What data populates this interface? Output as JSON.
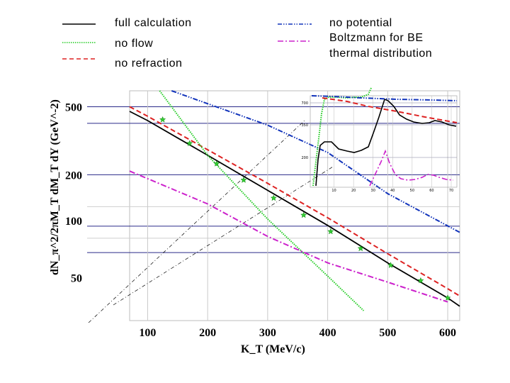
{
  "chart_data": {
    "type": "line",
    "xlabel": "K_T (MeV/c)",
    "ylabel": "dN_π^2/2πM_T dM_T dY (GeV^-2)",
    "x_ticks": [
      "100",
      "200",
      "300",
      "400",
      "500",
      "600"
    ],
    "y_ticks": [
      "500",
      "200",
      "100",
      "50"
    ],
    "xlim": [
      70,
      620
    ],
    "ylim": [
      28,
      620
    ],
    "y_scale": "log",
    "legend": {
      "placement": "top",
      "entries": [
        {
          "label": "full calculation",
          "color": "#000000",
          "dash": "solid"
        },
        {
          "label": "no flow",
          "color": "#22cc22",
          "dash": "dotted"
        },
        {
          "label": "no refraction",
          "color": "#dd2222",
          "dash": "dashed"
        },
        {
          "label": "no potential",
          "color": "#1133bb",
          "dash": "dashdotdot"
        },
        {
          "label": "Boltzmann for BE",
          "color": "#cc22cc",
          "dash": "dashdot"
        },
        {
          "label": "thermal distribution",
          "color": "",
          "dash": ""
        }
      ]
    },
    "series": [
      {
        "color": "#000000",
        "dash": "solid",
        "x": [
          70,
          100,
          200,
          300,
          400,
          500,
          600,
          620
        ],
        "y": [
          470,
          415,
          260,
          162,
          101,
          61,
          38,
          34
        ]
      },
      {
        "color": "#dd2222",
        "dash": "dashed",
        "x": [
          70,
          100,
          200,
          300,
          400,
          500,
          600,
          620
        ],
        "y": [
          500,
          440,
          280,
          178,
          112,
          69,
          43,
          39
        ]
      },
      {
        "color": "#22cc22",
        "dash": "dotted",
        "x": [
          120,
          200,
          300,
          400,
          460
        ],
        "y": [
          620,
          260,
          110,
          51,
          32
        ]
      },
      {
        "color": "#1133bb",
        "dash": "dashdotdot",
        "x": [
          140,
          300,
          400,
          500,
          620
        ],
        "y": [
          620,
          390,
          270,
          155,
          92
        ]
      },
      {
        "color": "#cc22cc",
        "dash": "dashdot",
        "x": [
          70,
          200,
          300,
          400,
          500,
          600
        ],
        "y": [
          210,
          135,
          87,
          61,
          47,
          36
        ]
      }
    ],
    "markers": {
      "color": "#33cc33",
      "x": [
        125,
        170,
        215,
        260,
        310,
        360,
        405,
        455,
        505,
        555,
        600
      ],
      "y": [
        420,
        305,
        232,
        186,
        146,
        116,
        93,
        74,
        59,
        48,
        38
      ]
    },
    "inset": {
      "x_ticks": [
        "10",
        "20",
        "30",
        "40",
        "50",
        "60",
        "70"
      ],
      "y_ticks": [
        "700",
        "350",
        "200"
      ]
    }
  }
}
